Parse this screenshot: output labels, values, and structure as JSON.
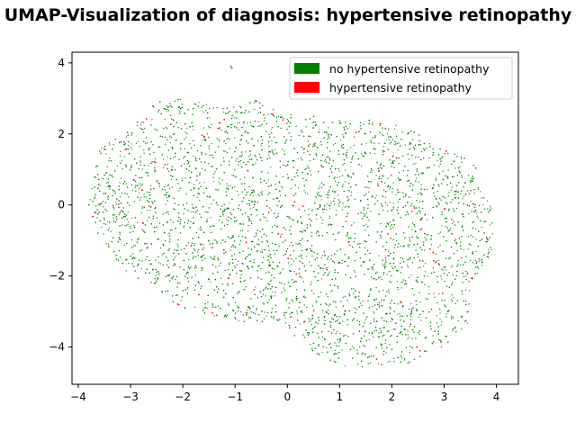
{
  "chart_data": {
    "type": "scatter",
    "title": "UMAP-Visualization of diagnosis: hypertensive retinopathy",
    "xlabel": "",
    "ylabel": "",
    "xlim": [
      -4.12,
      4.42
    ],
    "ylim": [
      -5.05,
      4.3
    ],
    "xticks": [
      "−4",
      "−3",
      "−2",
      "−1",
      "0",
      "1",
      "2",
      "3",
      "4"
    ],
    "xtick_values": [
      -4,
      -3,
      -2,
      -1,
      0,
      1,
      2,
      3,
      4
    ],
    "yticks": [
      "−4",
      "−2",
      "0",
      "2",
      "4"
    ],
    "ytick_values": [
      -4,
      -2,
      0,
      2,
      4
    ],
    "grid": false,
    "legend_position": "top-right",
    "point_cloud": {
      "shape": "irregular blob",
      "x_range": [
        -3.8,
        4.05
      ],
      "y_range": [
        -4.6,
        3.05
      ],
      "outlier": [
        -1.08,
        3.9
      ]
    },
    "series": [
      {
        "name": "no hypertensive retinopathy",
        "color": "#008000",
        "approx_points": 6500
      },
      {
        "name": "hypertensive retinopathy",
        "color": "#ff0000",
        "approx_points": 120
      }
    ]
  }
}
